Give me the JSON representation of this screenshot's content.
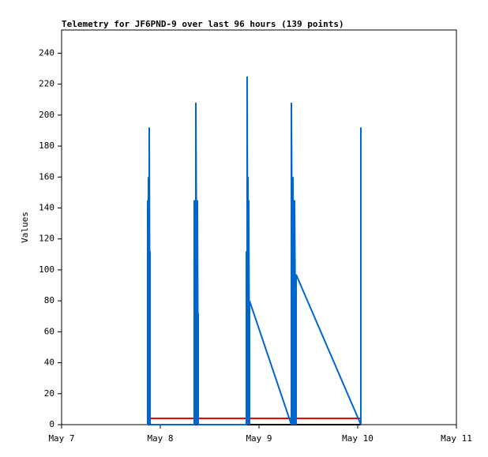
{
  "chart_data": {
    "type": "line",
    "title": "Telemetry for JF6PND-9 over last 96 hours (139 points)",
    "y_label": "Values",
    "xlim": [
      0,
      4
    ],
    "xticks": [
      {
        "value": 0,
        "label": "May 7"
      },
      {
        "value": 1,
        "label": "May 8"
      },
      {
        "value": 2,
        "label": "May 9"
      },
      {
        "value": 3,
        "label": "May 10"
      },
      {
        "value": 4,
        "label": "May 11"
      }
    ],
    "ylim": [
      0,
      255
    ],
    "yticks": [
      0,
      20,
      40,
      60,
      80,
      100,
      120,
      140,
      160,
      180,
      200,
      220,
      240
    ],
    "series": [
      {
        "color": "#000000",
        "x": [
          0.88,
          3.032
        ],
        "values": [
          0,
          0
        ]
      },
      {
        "color": "#dd0000",
        "x": [
          0.88,
          3.032
        ],
        "values": [
          4,
          4
        ]
      },
      {
        "color": "#0066cc",
        "x": [
          0.872,
          0.872,
          0.88,
          0.88,
          0.888,
          0.888,
          0.896,
          0.896,
          0.896,
          1.344,
          1.344,
          1.36,
          1.36,
          1.376,
          1.376,
          1.384,
          1.384,
          1.384,
          1.872,
          1.872,
          1.88,
          1.88,
          1.888,
          1.888,
          1.896,
          1.896,
          1.904,
          1.904,
          2.328,
          2.328,
          2.344,
          2.344,
          2.36,
          2.36,
          2.376,
          2.376,
          3.032,
          3.032,
          3.032
        ],
        "values": [
          0,
          145,
          0,
          160,
          0,
          192,
          0,
          112,
          0,
          0,
          145,
          0,
          208,
          0,
          145,
          0,
          72,
          0,
          0,
          112,
          0,
          225,
          0,
          160,
          0,
          145,
          0,
          80,
          0,
          208,
          0,
          160,
          0,
          145,
          0,
          97,
          0,
          192,
          0
        ]
      }
    ]
  }
}
